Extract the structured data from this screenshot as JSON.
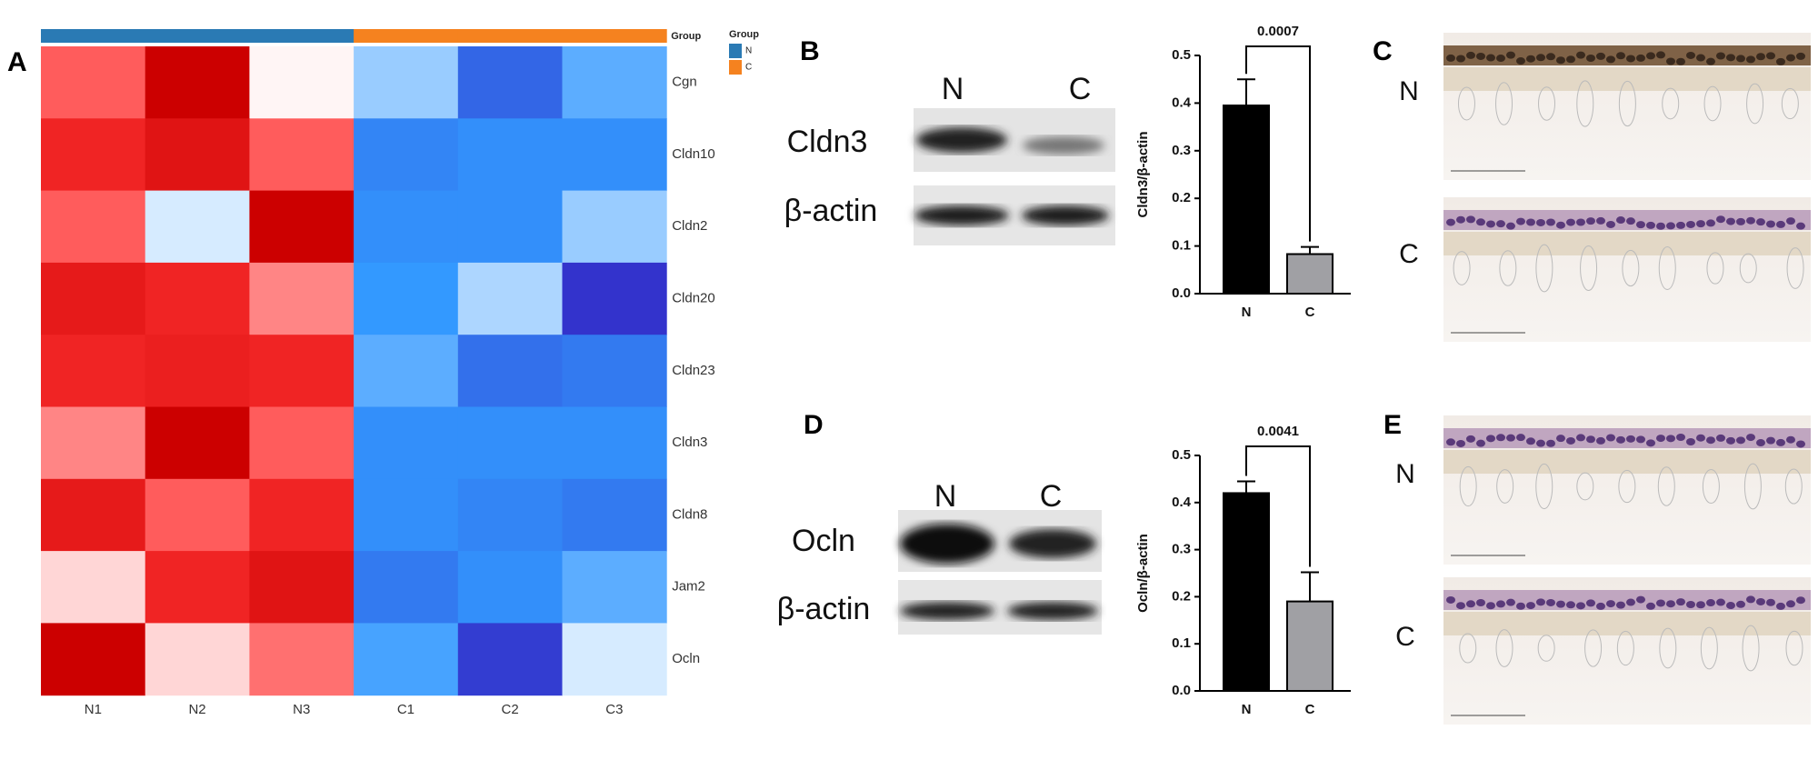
{
  "panel_labels": [
    "A",
    "B",
    "C",
    "D",
    "E"
  ],
  "chart_data": [
    {
      "type": "heatmap",
      "rows": [
        "Cgn",
        "Cldn10",
        "Cldn2",
        "Cldn20",
        "Cldn23",
        "Cldn3",
        "Cldn8",
        "Jam2",
        "Ocln"
      ],
      "columns": [
        "N1",
        "N2",
        "N3",
        "C1",
        "C2",
        "C3"
      ],
      "values": [
        [
          0.8,
          2,
          0.05,
          -0.5,
          -1.5,
          -0.8
        ],
        [
          1.3,
          1.6,
          0.8,
          -1.2,
          -1.1,
          -1.1
        ],
        [
          0.8,
          -0.2,
          2,
          -1.1,
          -1.1,
          -0.5
        ],
        [
          1.5,
          1.3,
          0.6,
          -1.0,
          -0.4,
          -2
        ],
        [
          1.3,
          1.4,
          1.3,
          -0.8,
          -1.4,
          -1.3
        ],
        [
          0.6,
          2,
          0.8,
          -1.1,
          -1.1,
          -1.1
        ],
        [
          1.5,
          0.8,
          1.3,
          -1.1,
          -1.2,
          -1.3
        ],
        [
          0.2,
          1.3,
          1.6,
          -1.3,
          -1.1,
          -0.8
        ],
        [
          2,
          0.2,
          0.7,
          -0.9,
          -1.9,
          -0.2
        ]
      ],
      "zlim": [
        -2,
        2
      ],
      "colormap": [
        "#3333cc",
        "#3399ff",
        "#ffffff",
        "#ff3333",
        "#cc0000"
      ],
      "annotation_label": "Group",
      "legend_title": "Group",
      "groups": [
        "N",
        "C"
      ],
      "group_colors": [
        "#2a7ab4",
        "#f5821f"
      ],
      "column_groups": [
        "N",
        "N",
        "N",
        "C",
        "C",
        "C"
      ]
    },
    {
      "type": "bar",
      "categories": [
        "N",
        "C"
      ],
      "values": [
        0.395,
        0.083
      ],
      "errors": [
        0.055,
        0.015
      ],
      "colors": [
        "#000000",
        "#a0a0a4"
      ],
      "ylabel": "Cldn3/β-actin",
      "ylim": [
        0,
        0.5
      ],
      "yticks": [
        {
          "value": 0,
          "label": "0.0"
        },
        0.1,
        0.2,
        0.3,
        0.4,
        0.5
      ],
      "annotation": "0.0007"
    },
    {
      "type": "bar",
      "categories": [
        "N",
        "C"
      ],
      "values": [
        0.42,
        0.19
      ],
      "errors": [
        0.025,
        0.062
      ],
      "colors": [
        "#000000",
        "#a0a0a4"
      ],
      "ylabel": "Ocln/β-actin",
      "ylim": [
        0,
        0.5
      ],
      "yticks": [
        {
          "value": 0,
          "label": "0.0"
        },
        0.1,
        0.2,
        0.3,
        0.4,
        0.5
      ],
      "annotation": "0.0041"
    }
  ],
  "blots": [
    {
      "lanes": [
        "N",
        "C"
      ],
      "rows": [
        "Cldn3",
        "β-actin"
      ]
    },
    {
      "lanes": [
        "N",
        "C"
      ],
      "rows": [
        "Ocln",
        "β-actin"
      ]
    }
  ],
  "micrographs": [
    {
      "rows": [
        "N",
        "C"
      ]
    },
    {
      "rows": [
        "N",
        "C"
      ]
    }
  ]
}
